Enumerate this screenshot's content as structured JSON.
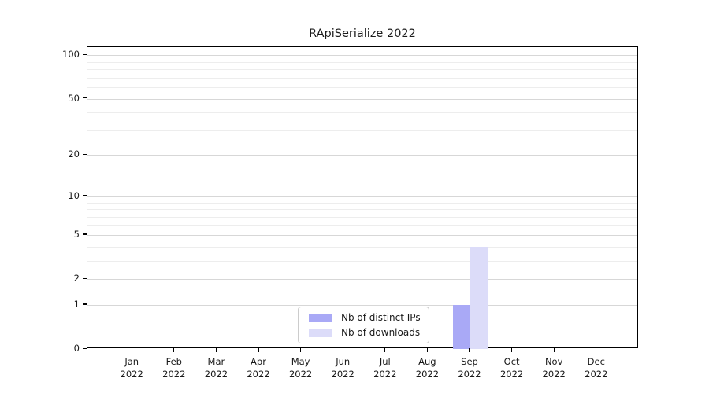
{
  "chart_data": {
    "type": "bar",
    "title": "RApiSerialize 2022",
    "categories": [
      "Jan 2022",
      "Feb 2022",
      "Mar 2022",
      "Apr 2022",
      "May 2022",
      "Jun 2022",
      "Jul 2022",
      "Aug 2022",
      "Sep 2022",
      "Oct 2022",
      "Nov 2022",
      "Dec 2022"
    ],
    "series": [
      {
        "name": "Nb of distinct IPs",
        "color": "#a9a9f6",
        "values": [
          0,
          0,
          0,
          0,
          0,
          0,
          0,
          0,
          1,
          0,
          0,
          0
        ]
      },
      {
        "name": "Nb of downloads",
        "color": "#dcdcf9",
        "values": [
          0,
          0,
          0,
          0,
          0,
          0,
          0,
          0,
          4,
          0,
          0,
          0
        ]
      }
    ],
    "xlabel": "",
    "ylabel": "",
    "yscale": "log1p",
    "ylim": [
      0,
      113.6
    ],
    "yticks": [
      0,
      1,
      2,
      5,
      10,
      20,
      50,
      100
    ],
    "minor_gridlines": [
      3,
      4,
      6,
      7,
      8,
      9,
      30,
      40,
      60,
      70,
      80,
      90
    ],
    "grid": "horizontal",
    "legend_position": "bottom-center",
    "text_color": "#191919",
    "background_color": "#ffffff"
  }
}
